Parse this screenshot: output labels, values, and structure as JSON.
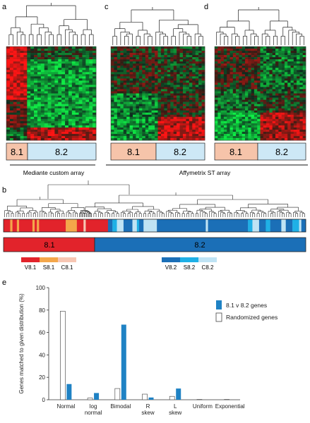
{
  "panels": {
    "a": "a",
    "b": "b",
    "c": "c",
    "d": "d",
    "e": "e"
  },
  "heatmaps": {
    "a": {
      "labels": [
        "8.1",
        "8.2"
      ]
    },
    "c": {
      "labels": [
        "8.1",
        "8.2"
      ]
    },
    "d": {
      "labels": [
        "8.1",
        "8.2"
      ]
    }
  },
  "array_labels": {
    "mediante": "Mediante custom array",
    "affymetrix": "Affymetrix ST array"
  },
  "cluster_bar": {
    "left": "8.1",
    "right": "8.2"
  },
  "subtype_legend": {
    "group81": [
      "V8.1",
      "S8.1",
      "C8.1"
    ],
    "group82": [
      "V8.2",
      "S8.2",
      "C8.2"
    ]
  },
  "colors": {
    "red_81": "#e2232b",
    "orange_81": "#f4a74a",
    "pink_81": "#f7c6b3",
    "dark_blue_82": "#1b6fb7",
    "mid_blue_82": "#1fb0e6",
    "light_blue_82": "#bfe3f4",
    "salmon_label": "#f6c4aa",
    "ltblue_label": "#cde8f6",
    "bar_blue": "#1f82c4"
  },
  "chart_data": {
    "type": "bar",
    "ylabel": "Genes matched to given distribution (%)",
    "ylim": [
      0,
      100
    ],
    "yticks": [
      "0",
      "20",
      "40",
      "60",
      "80",
      "100"
    ],
    "categories": [
      "Normal",
      "log normal",
      "Bimodal",
      "R skew",
      "L skew",
      "Uniform",
      "Exponential"
    ],
    "series": [
      {
        "name": "Randomized genes",
        "values": [
          79,
          1.5,
          10,
          5,
          3,
          0.3,
          0.3
        ]
      },
      {
        "name": "8.1 v 8.2 genes",
        "values": [
          14,
          6,
          67,
          2,
          10,
          0,
          0
        ]
      }
    ],
    "legend": [
      "8.1 v 8.2 genes",
      "Randomized genes"
    ]
  }
}
